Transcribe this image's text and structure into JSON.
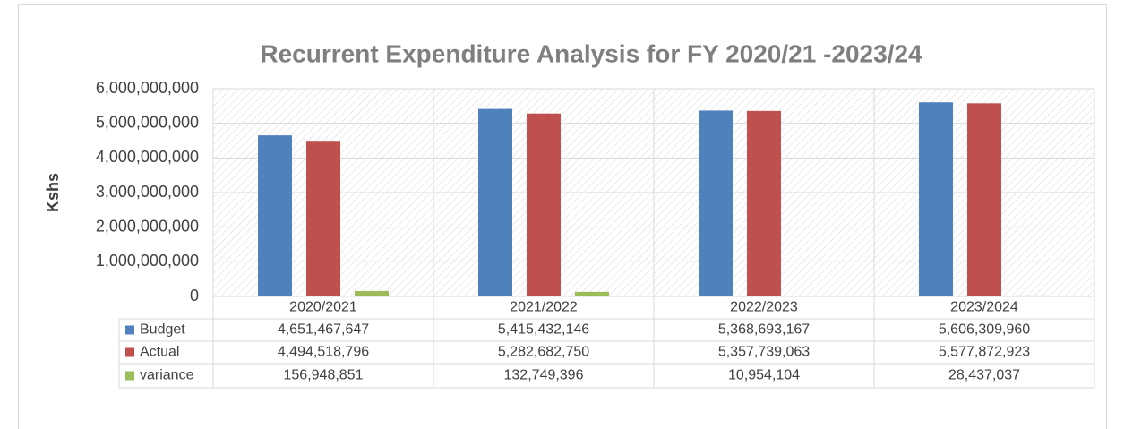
{
  "chart_data": {
    "type": "bar",
    "title": "Recurrent Expenditure Analysis for FY 2020/21 -2023/24",
    "y_label": "Kshs",
    "categories": [
      "2020/2021",
      "2021/2022",
      "2022/2023",
      "2023/2024"
    ],
    "series": [
      {
        "name": "Budget",
        "color": "#4f81bd",
        "values": [
          4651467647,
          5415432146,
          5368693167,
          5606309960
        ],
        "value_labels": [
          "4,651,467,647",
          "5,415,432,146",
          "5,368,693,167",
          "5,606,309,960"
        ]
      },
      {
        "name": "Actual",
        "color": "#c0504d",
        "values": [
          4494518796,
          5282682750,
          5357739063,
          5577872923
        ],
        "value_labels": [
          "4,494,518,796",
          "5,282,682,750",
          "5,357,739,063",
          "5,577,872,923"
        ]
      },
      {
        "name": "variance",
        "color": "#9bbb59",
        "values": [
          156948851,
          132749396,
          10954104,
          28437037
        ],
        "value_labels": [
          "156,948,851",
          "132,749,396",
          "10,954,104",
          "28,437,037"
        ]
      }
    ],
    "ylim": [
      0,
      6000000000
    ],
    "yticks": [
      0,
      {
        "value": 1000000000,
        "label": "1,000,000,000"
      },
      {
        "value": 2000000000,
        "label": "2,000,000,000"
      },
      {
        "value": 3000000000,
        "label": "3,000,000,000"
      },
      {
        "value": 4000000000,
        "label": "4,000,000,000"
      },
      {
        "value": 5000000000,
        "label": "5,000,000,000"
      },
      {
        "value": 6000000000,
        "label": "6,000,000,000"
      }
    ],
    "grid": true
  }
}
